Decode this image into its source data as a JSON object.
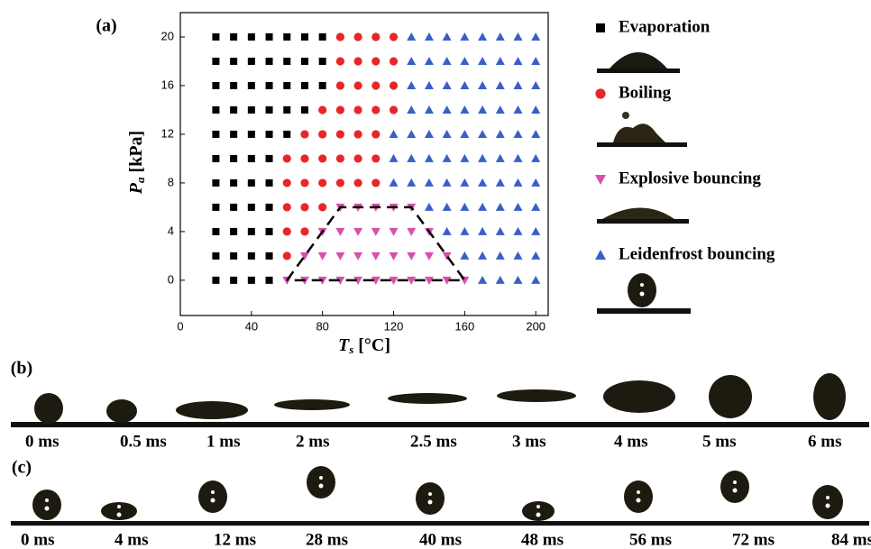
{
  "chart_data": {
    "type": "scatter",
    "panel_label": "(a)",
    "xlabel": {
      "symbol": "T",
      "subscript": "s",
      "unit": "[°C]"
    },
    "ylabel": {
      "symbol": "P",
      "subscript": "a",
      "unit": "[kPa]"
    },
    "xlim": [
      0,
      207
    ],
    "ylim": [
      -2.9,
      22
    ],
    "xticks": [
      0,
      40,
      80,
      120,
      160,
      200
    ],
    "yticks": [
      0,
      4,
      8,
      12,
      16,
      20
    ],
    "series": [
      {
        "name": "Evaporation",
        "color": "#000000",
        "marker": "square",
        "x": [
          20,
          30,
          40,
          50,
          60,
          70,
          80,
          20,
          30,
          40,
          50,
          60,
          70,
          80,
          20,
          30,
          40,
          50,
          60,
          70,
          80,
          20,
          30,
          40,
          50,
          60,
          70,
          20,
          30,
          40,
          50,
          60,
          20,
          30,
          40,
          50,
          20,
          30,
          40,
          50,
          20,
          30,
          40,
          50,
          20,
          30,
          40,
          50,
          20,
          30,
          40,
          50,
          20,
          30,
          40,
          50
        ],
        "values": [
          20,
          20,
          20,
          20,
          20,
          20,
          20,
          18,
          18,
          18,
          18,
          18,
          18,
          18,
          16,
          16,
          16,
          16,
          16,
          16,
          16,
          14,
          14,
          14,
          14,
          14,
          14,
          12,
          12,
          12,
          12,
          12,
          10,
          10,
          10,
          10,
          8,
          8,
          8,
          8,
          6,
          6,
          6,
          6,
          4,
          4,
          4,
          4,
          2,
          2,
          2,
          2,
          0,
          0,
          0,
          0
        ]
      },
      {
        "name": "Boiling",
        "color": "#e8262a",
        "marker": "circle",
        "x": [
          90,
          100,
          110,
          120,
          90,
          100,
          110,
          120,
          90,
          100,
          110,
          120,
          80,
          90,
          100,
          110,
          120,
          70,
          80,
          90,
          100,
          110,
          60,
          70,
          80,
          90,
          100,
          110,
          60,
          70,
          80,
          90,
          100,
          110,
          60,
          70,
          80,
          60,
          70,
          60
        ],
        "values": [
          20,
          20,
          20,
          20,
          18,
          18,
          18,
          18,
          16,
          16,
          16,
          16,
          14,
          14,
          14,
          14,
          14,
          12,
          12,
          12,
          12,
          12,
          10,
          10,
          10,
          10,
          10,
          10,
          8,
          8,
          8,
          8,
          8,
          8,
          6,
          6,
          6,
          4,
          4,
          2
        ]
      },
      {
        "name": "Explosive bouncing",
        "color": "#d94fab",
        "marker": "triangle-down",
        "x": [
          90,
          100,
          110,
          120,
          130,
          80,
          90,
          100,
          110,
          120,
          130,
          140,
          70,
          80,
          90,
          100,
          110,
          120,
          130,
          140,
          150,
          60,
          70,
          80,
          90,
          100,
          110,
          120,
          130,
          140,
          150,
          160
        ],
        "values": [
          6,
          6,
          6,
          6,
          6,
          4,
          4,
          4,
          4,
          4,
          4,
          4,
          2,
          2,
          2,
          2,
          2,
          2,
          2,
          2,
          2,
          0,
          0,
          0,
          0,
          0,
          0,
          0,
          0,
          0,
          0,
          0
        ]
      },
      {
        "name": "Leidenfrost bouncing",
        "color": "#3a5fc8",
        "marker": "triangle-up",
        "x": [
          130,
          140,
          150,
          160,
          170,
          180,
          190,
          200,
          130,
          140,
          150,
          160,
          170,
          180,
          190,
          200,
          130,
          140,
          150,
          160,
          170,
          180,
          190,
          200,
          130,
          140,
          150,
          160,
          170,
          180,
          190,
          200,
          120,
          130,
          140,
          150,
          160,
          170,
          180,
          190,
          200,
          120,
          130,
          140,
          150,
          160,
          170,
          180,
          190,
          200,
          120,
          130,
          140,
          150,
          160,
          170,
          180,
          190,
          200,
          140,
          150,
          160,
          170,
          180,
          190,
          200,
          150,
          160,
          170,
          180,
          190,
          200,
          160,
          170,
          180,
          190,
          200,
          170,
          180,
          190,
          200
        ],
        "values": [
          20,
          20,
          20,
          20,
          20,
          20,
          20,
          20,
          18,
          18,
          18,
          18,
          18,
          18,
          18,
          18,
          16,
          16,
          16,
          16,
          16,
          16,
          16,
          16,
          14,
          14,
          14,
          14,
          14,
          14,
          14,
          14,
          12,
          12,
          12,
          12,
          12,
          12,
          12,
          12,
          12,
          10,
          10,
          10,
          10,
          10,
          10,
          10,
          10,
          10,
          8,
          8,
          8,
          8,
          8,
          8,
          8,
          8,
          8,
          6,
          6,
          6,
          6,
          6,
          6,
          6,
          4,
          4,
          4,
          4,
          4,
          4,
          2,
          2,
          2,
          2,
          2,
          0,
          0,
          0,
          0
        ]
      }
    ],
    "boundary": {
      "x": [
        60,
        90,
        130,
        160,
        60
      ],
      "values": [
        0,
        6,
        6,
        0,
        0
      ]
    }
  },
  "panel_b": {
    "label": "(b)",
    "times": [
      "0 ms",
      "0.5 ms",
      "1 ms",
      "2 ms",
      "2.5 ms",
      "3 ms",
      "4 ms",
      "5 ms",
      "6 ms"
    ]
  },
  "panel_c": {
    "label": "(c)",
    "times": [
      "0 ms",
      "4 ms",
      "12 ms",
      "28 ms",
      "40 ms",
      "48 ms",
      "56 ms",
      "72 ms",
      "84 ms"
    ]
  }
}
